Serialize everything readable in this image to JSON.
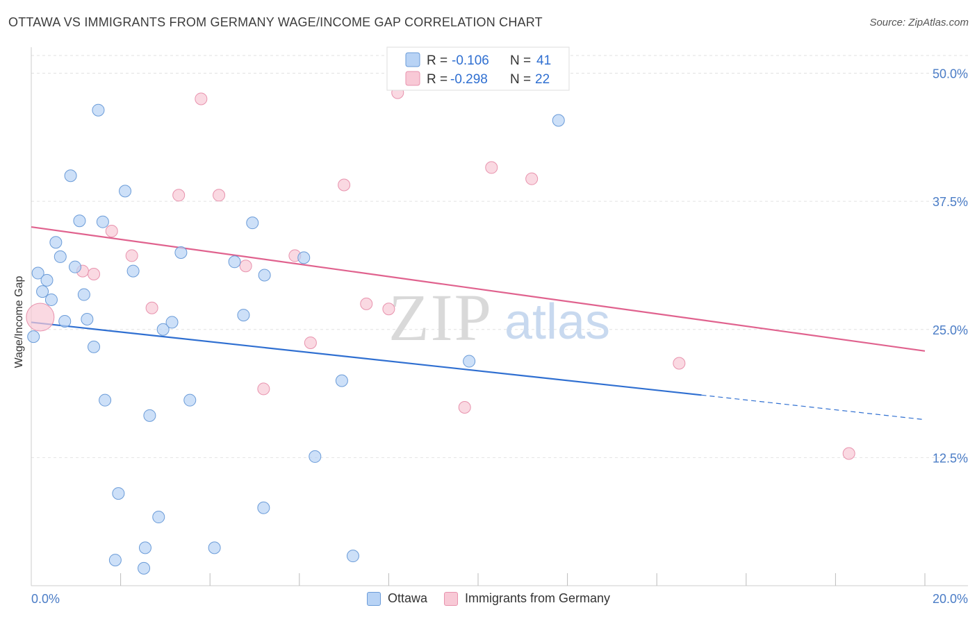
{
  "header": {
    "title": "OTTAWA VS IMMIGRANTS FROM GERMANY WAGE/INCOME GAP CORRELATION CHART",
    "source": "Source: ZipAtlas.com"
  },
  "watermark": {
    "zip": "ZIP",
    "atlas": "atlas"
  },
  "colors": {
    "ottawa_fill": "#b8d3f5",
    "ottawa_stroke": "#6a9bd8",
    "ottawa_line": "#2f6fd1",
    "germany_fill": "#f8c9d6",
    "germany_stroke": "#e892ad",
    "germany_line": "#e0628e",
    "axis_text": "#4a7cc6"
  },
  "chart_data": {
    "type": "scatter",
    "title": "OTTAWA VS IMMIGRANTS FROM GERMANY WAGE/INCOME GAP CORRELATION CHART",
    "xlabel": "",
    "ylabel": "Wage/Income Gap",
    "xlim": [
      0,
      20
    ],
    "ylim": [
      0,
      52
    ],
    "x_tick_labels": [
      "0.0%",
      "20.0%"
    ],
    "y_ticks": [
      12.5,
      25.0,
      37.5,
      50.0
    ],
    "y_tick_labels": [
      "12.5%",
      "25.0%",
      "37.5%",
      "50.0%"
    ],
    "grid": true,
    "legend_position": "top-center",
    "series": [
      {
        "name": "Ottawa",
        "R_label": "R =",
        "R": "-0.106",
        "N_label": "N =",
        "N": "41",
        "trend": {
          "x0": 0.0,
          "y0": 25.7,
          "x1": 15.0,
          "y1": 18.6,
          "dash_to_x": 20.0,
          "dash_to_y": 16.2
        },
        "points": [
          [
            0.05,
            24.3
          ],
          [
            0.15,
            30.5
          ],
          [
            0.25,
            28.7
          ],
          [
            0.35,
            29.8
          ],
          [
            0.45,
            27.9
          ],
          [
            0.55,
            33.5
          ],
          [
            0.65,
            32.1
          ],
          [
            0.75,
            25.8
          ],
          [
            0.88,
            40.0
          ],
          [
            0.98,
            31.1
          ],
          [
            1.08,
            35.6
          ],
          [
            1.18,
            28.4
          ],
          [
            1.25,
            26.0
          ],
          [
            1.4,
            23.3
          ],
          [
            1.5,
            46.4
          ],
          [
            1.6,
            35.5
          ],
          [
            1.65,
            18.1
          ],
          [
            1.95,
            9.0
          ],
          [
            2.1,
            38.5
          ],
          [
            2.28,
            30.7
          ],
          [
            2.52,
            1.7
          ],
          [
            2.55,
            3.7
          ],
          [
            2.65,
            16.6
          ],
          [
            2.85,
            6.7
          ],
          [
            2.95,
            25.0
          ],
          [
            3.15,
            25.7
          ],
          [
            3.35,
            32.5
          ],
          [
            3.55,
            18.1
          ],
          [
            4.1,
            3.7
          ],
          [
            4.55,
            31.6
          ],
          [
            4.75,
            26.4
          ],
          [
            4.95,
            35.4
          ],
          [
            5.2,
            7.6
          ],
          [
            5.22,
            30.3
          ],
          [
            6.1,
            32.0
          ],
          [
            6.35,
            12.6
          ],
          [
            6.95,
            20.0
          ],
          [
            7.2,
            2.9
          ],
          [
            9.8,
            21.9
          ],
          [
            11.8,
            45.4
          ],
          [
            1.88,
            2.5
          ]
        ]
      },
      {
        "name": "Immigrants from Germany",
        "R_label": "R =",
        "R": "-0.298",
        "N_label": "N =",
        "N": "22",
        "trend": {
          "x0": 0.0,
          "y0": 35.0,
          "x1": 20.0,
          "y1": 22.9
        },
        "points": [
          [
            0.2,
            26.2
          ],
          [
            1.15,
            30.7
          ],
          [
            1.4,
            30.4
          ],
          [
            1.8,
            34.6
          ],
          [
            2.25,
            32.2
          ],
          [
            2.7,
            27.1
          ],
          [
            3.3,
            38.1
          ],
          [
            3.8,
            47.5
          ],
          [
            4.2,
            38.1
          ],
          [
            4.8,
            31.2
          ],
          [
            5.2,
            19.2
          ],
          [
            5.9,
            32.2
          ],
          [
            6.25,
            23.7
          ],
          [
            7.0,
            39.1
          ],
          [
            7.5,
            27.5
          ],
          [
            8.0,
            27.0
          ],
          [
            8.2,
            48.1
          ],
          [
            9.7,
            17.4
          ],
          [
            10.3,
            40.8
          ],
          [
            11.2,
            39.7
          ],
          [
            14.5,
            21.7
          ],
          [
            18.3,
            12.9
          ]
        ]
      }
    ]
  },
  "legend_bottom": {
    "items": [
      {
        "label": "Ottawa"
      },
      {
        "label": "Immigrants from Germany"
      }
    ]
  }
}
